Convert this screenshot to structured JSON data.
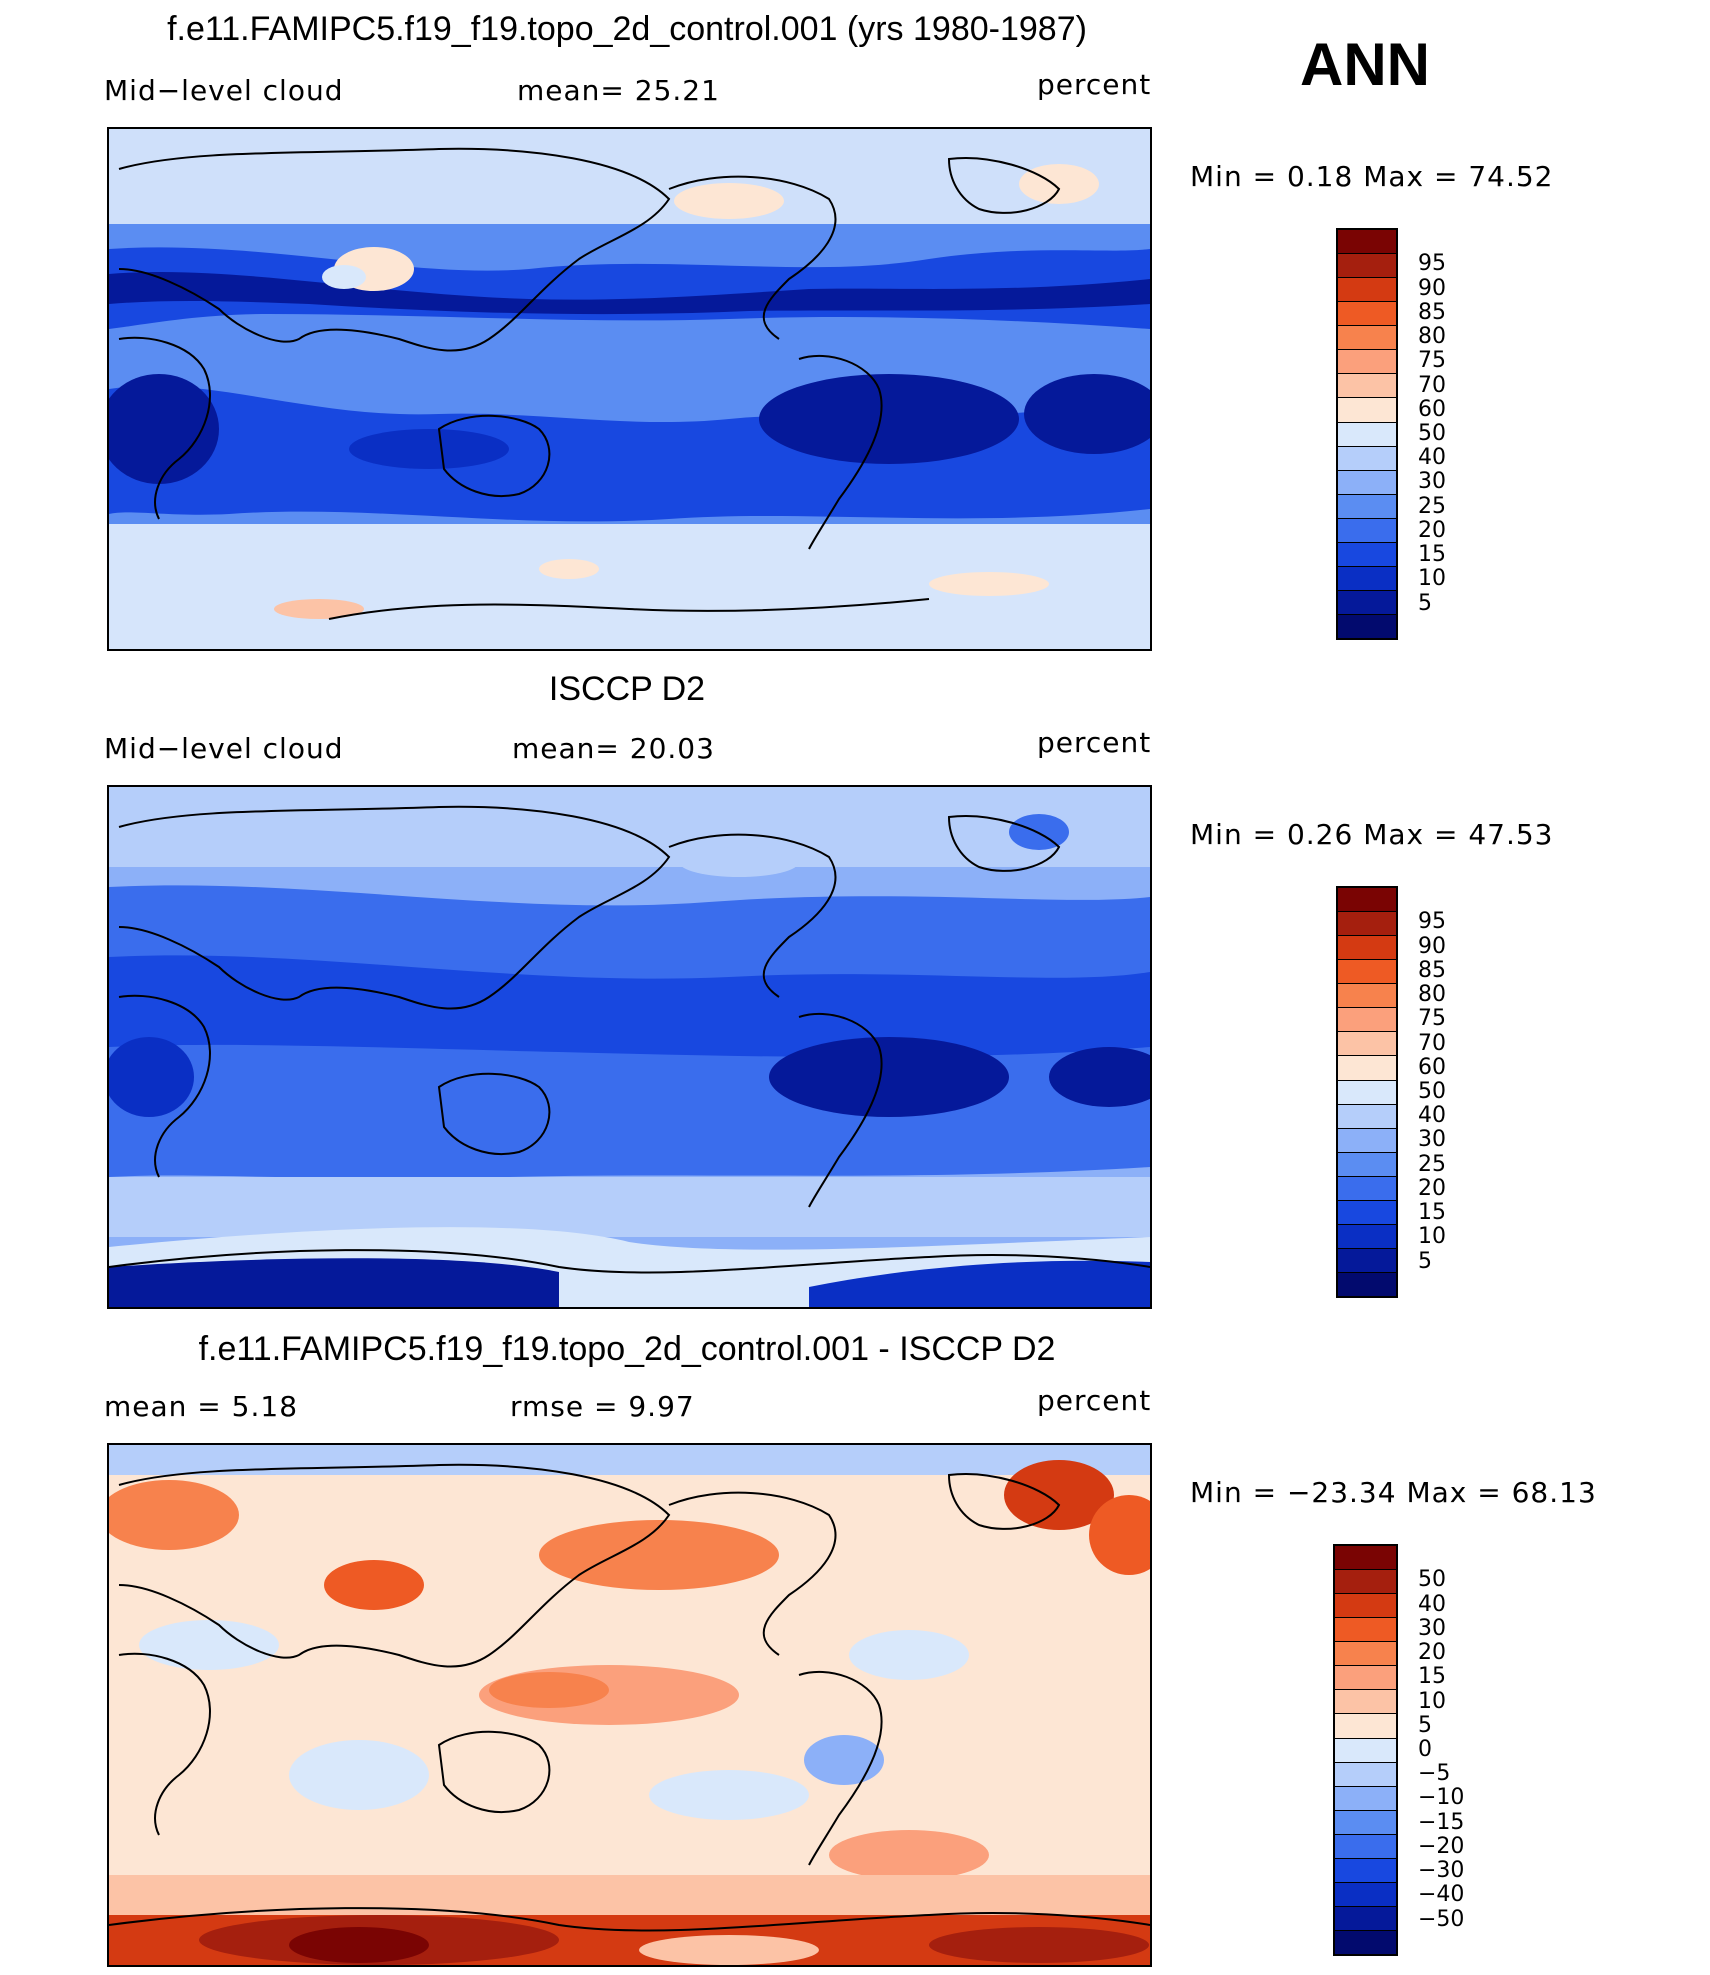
{
  "season_label": "ANN",
  "panels": [
    {
      "title": "f.e11.FAMIPC5.f19_f19.topo_2d_control.001 (yrs 1980-1987)",
      "left_label": "Mid−level cloud",
      "center_label": "mean=   25.21",
      "right_label": "percent",
      "minmax": "Min =    0.18 Max =   74.52",
      "colorbar": {
        "colors": [
          "#7a0403",
          "#a51f0e",
          "#d43a12",
          "#ee5a24",
          "#f7824d",
          "#fba07c",
          "#fcc3a6",
          "#fde6d4",
          "#d9e8fb",
          "#b5cefa",
          "#8cb0f8",
          "#5b8df2",
          "#3a6ded",
          "#1848e0",
          "#0a2fc4",
          "#05199a",
          "#020a6e"
        ],
        "labels": [
          "95",
          "90",
          "85",
          "80",
          "75",
          "70",
          "60",
          "50",
          "40",
          "30",
          "25",
          "20",
          "15",
          "10",
          "5"
        ]
      }
    },
    {
      "title": "ISCCP D2",
      "left_label": "Mid−level cloud",
      "center_label": "mean=   20.03",
      "right_label": "percent",
      "minmax": "Min =    0.26 Max =   47.53",
      "colorbar": {
        "colors": [
          "#7a0403",
          "#a51f0e",
          "#d43a12",
          "#ee5a24",
          "#f7824d",
          "#fba07c",
          "#fcc3a6",
          "#fde6d4",
          "#d9e8fb",
          "#b5cefa",
          "#8cb0f8",
          "#5b8df2",
          "#3a6ded",
          "#1848e0",
          "#0a2fc4",
          "#05199a",
          "#020a6e"
        ],
        "labels": [
          "95",
          "90",
          "85",
          "80",
          "75",
          "70",
          "60",
          "50",
          "40",
          "30",
          "25",
          "20",
          "15",
          "10",
          "5"
        ]
      }
    },
    {
      "title": "f.e11.FAMIPC5.f19_f19.topo_2d_control.001 - ISCCP D2",
      "left_label": "mean =     5.18",
      "center_label": "rmse =     9.97",
      "right_label": "percent",
      "minmax": "Min = −23.34 Max =   68.13",
      "colorbar": {
        "colors": [
          "#7a0403",
          "#a51f0e",
          "#d43a12",
          "#ee5a24",
          "#f7824d",
          "#fba07c",
          "#fcc3a6",
          "#fde6d4",
          "#d9e8fb",
          "#b5cefa",
          "#8cb0f8",
          "#5b8df2",
          "#3a6ded",
          "#1848e0",
          "#0a2fc4",
          "#05199a",
          "#020a6e"
        ],
        "labels": [
          "50",
          "40",
          "30",
          "20",
          "15",
          "10",
          "5",
          "0",
          "−5",
          "−10",
          "−15",
          "−20",
          "−30",
          "−40",
          "−50"
        ]
      }
    }
  ]
}
